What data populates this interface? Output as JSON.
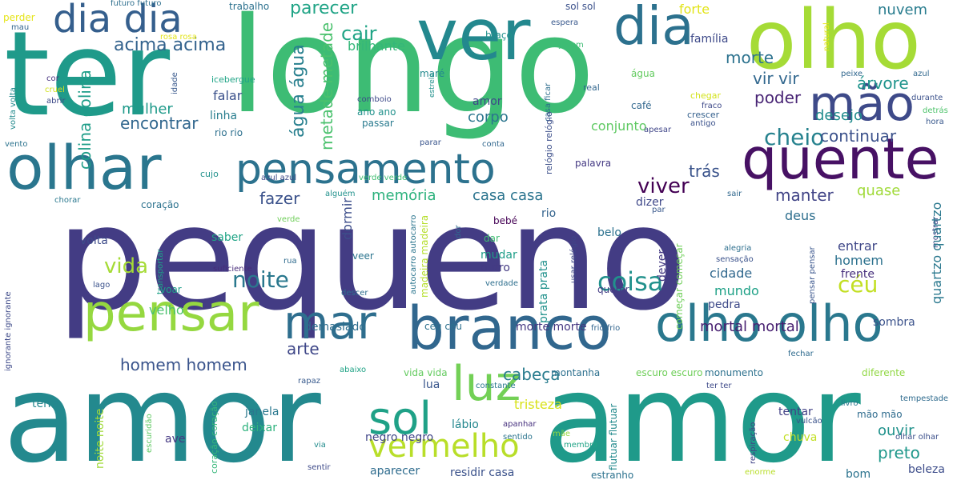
{
  "words": [
    {
      "text": "pequeno",
      "color": "#433c84"
    },
    {
      "text": "longo",
      "color": "#3dbc74"
    },
    {
      "text": "amor",
      "color": "#23898e"
    },
    {
      "text": "ter",
      "color": "#1f9a8a"
    },
    {
      "text": "amor",
      "color": "#1f9a8a"
    },
    {
      "text": "olho",
      "color": "#a5db36"
    },
    {
      "text": "ver",
      "color": "#23888e"
    },
    {
      "text": "quente",
      "color": "#471164"
    },
    {
      "text": "olhar",
      "color": "#2a768e"
    },
    {
      "text": "pensamento",
      "color": "#2c728e"
    },
    {
      "text": "branco",
      "color": "#31678e"
    },
    {
      "text": "olho olho",
      "color": "#2a788e"
    },
    {
      "text": "pensar",
      "color": "#95d840"
    },
    {
      "text": "dia dia",
      "color": "#355f8d"
    },
    {
      "text": "dia",
      "color": "#2c718e"
    },
    {
      "text": "mão",
      "color": "#3e4a89"
    },
    {
      "text": "mar",
      "color": "#2e6e8e"
    },
    {
      "text": "luz",
      "color": "#73d056"
    },
    {
      "text": "sol",
      "color": "#1fa187"
    },
    {
      "text": "vermelho",
      "color": "#b8de29"
    },
    {
      "text": "coisa",
      "color": "#21918c"
    },
    {
      "text": "noite",
      "color": "#2a788e"
    },
    {
      "text": "viver",
      "color": "#440154"
    },
    {
      "text": "vida",
      "color": "#a5db36"
    },
    {
      "text": "céu",
      "color": "#c2df23"
    },
    {
      "text": "cheio",
      "color": "#26828e"
    },
    {
      "text": "encontrar",
      "color": "#31678e"
    },
    {
      "text": "parecer",
      "color": "#20a486"
    },
    {
      "text": "cair",
      "color": "#20a486"
    },
    {
      "text": "acima acima",
      "color": "#33628d"
    },
    {
      "text": "água água",
      "color": "#277f8e"
    },
    {
      "text": "metade metade",
      "color": "#4ac16d"
    },
    {
      "text": "colina colina",
      "color": "#1f9e89"
    },
    {
      "text": "morte",
      "color": "#2c728e"
    },
    {
      "text": "nuvem",
      "color": "#287c8e"
    },
    {
      "text": "vir vir",
      "color": "#31678e"
    },
    {
      "text": "árvore",
      "color": "#1f948c"
    },
    {
      "text": "poder",
      "color": "#482475"
    },
    {
      "text": "desejo",
      "color": "#228c8d"
    },
    {
      "text": "continuar",
      "color": "#3b518b"
    },
    {
      "text": "manter",
      "color": "#414487"
    },
    {
      "text": "quase",
      "color": "#a0da39"
    },
    {
      "text": "fazer",
      "color": "#3b528b"
    },
    {
      "text": "memória",
      "color": "#2db27d"
    },
    {
      "text": "casa casa",
      "color": "#2b748e"
    },
    {
      "text": "trás",
      "color": "#3a538b"
    },
    {
      "text": "homem homem",
      "color": "#3a548c"
    },
    {
      "text": "mortal mortal",
      "color": "#482071"
    },
    {
      "text": "arte",
      "color": "#3f4788"
    },
    {
      "text": "cabeça",
      "color": "#287c8e"
    },
    {
      "text": "tristeza",
      "color": "#d8e219"
    },
    {
      "text": "preto",
      "color": "#1f988b"
    },
    {
      "text": "ouvir",
      "color": "#20928c"
    },
    {
      "text": "mulher",
      "color": "#1f9a8a"
    },
    {
      "text": "falar",
      "color": "#3b518b"
    },
    {
      "text": "corpo",
      "color": "#2b758e"
    },
    {
      "text": "brilhante",
      "color": "#35b779"
    },
    {
      "text": "conjunto",
      "color": "#5ec962"
    },
    {
      "text": "amor",
      "color": "#3f4889"
    },
    {
      "text": "linha",
      "color": "#287d8e"
    },
    {
      "text": "forte",
      "color": "#e2e418"
    },
    {
      "text": "família",
      "color": "#3e4a89"
    },
    {
      "text": "deus",
      "color": "#2e6f8e"
    },
    {
      "text": "mundo",
      "color": "#1fa187"
    },
    {
      "text": "cidade",
      "color": "#31688e"
    },
    {
      "text": "homem",
      "color": "#2c718e"
    },
    {
      "text": "frente",
      "color": "#472f7d"
    },
    {
      "text": "entrar",
      "color": "#3f4788"
    },
    {
      "text": "volta",
      "color": "#3e4c8a"
    },
    {
      "text": "saber",
      "color": "#20a486"
    },
    {
      "text": "velho",
      "color": "#4ac16d"
    },
    {
      "text": "dormir",
      "color": "#3d4e8a"
    },
    {
      "text": "mudar",
      "color": "#1f9e89"
    },
    {
      "text": "outro",
      "color": "#443a83"
    },
    {
      "text": "pedra",
      "color": "#3e4a89"
    },
    {
      "text": "belo",
      "color": "#2c718e"
    },
    {
      "text": "sombra",
      "color": "#3b528b"
    },
    {
      "text": "demasiado",
      "color": "#2e6e8e"
    },
    {
      "text": "céu céu",
      "color": "#2d708e"
    },
    {
      "text": "morte morte",
      "color": "#453781"
    },
    {
      "text": "lua",
      "color": "#39568c"
    },
    {
      "text": "janela",
      "color": "#2a778e"
    },
    {
      "text": "deixar",
      "color": "#2db27d"
    },
    {
      "text": "lábio",
      "color": "#24878e"
    },
    {
      "text": "negro negro",
      "color": "#404688"
    },
    {
      "text": "aparecer",
      "color": "#2f6c8e"
    },
    {
      "text": "residir casa",
      "color": "#3b528b"
    },
    {
      "text": "tentar",
      "color": "#424186"
    },
    {
      "text": "mão mão",
      "color": "#2f6c8e"
    },
    {
      "text": "chuva",
      "color": "#c2df23"
    },
    {
      "text": "beleza",
      "color": "#3d4d8a"
    },
    {
      "text": "bom",
      "color": "#2c738e"
    },
    {
      "text": "ave",
      "color": "#453882"
    },
    {
      "text": "terra",
      "color": "#24878e"
    },
    {
      "text": "rio",
      "color": "#33638d"
    },
    {
      "text": "dizer",
      "color": "#3f4889"
    },
    {
      "text": "bebé",
      "color": "#440154"
    },
    {
      "text": "dar",
      "color": "#40bd72"
    },
    {
      "text": "voar",
      "color": "#1f9e89"
    },
    {
      "text": "coração",
      "color": "#2c728e"
    },
    {
      "text": "café",
      "color": "#31678e"
    },
    {
      "text": "real",
      "color": "#31668e"
    },
    {
      "text": "água",
      "color": "#63cb5f"
    },
    {
      "text": "maré",
      "color": "#23898e"
    },
    {
      "text": "comboio",
      "color": "#3e4a89"
    },
    {
      "text": "passar",
      "color": "#297a8e"
    },
    {
      "text": "ano ano",
      "color": "#21918c"
    },
    {
      "text": "rio rio",
      "color": "#2d708e"
    },
    {
      "text": "trabalho",
      "color": "#2c718e"
    },
    {
      "text": "sol sol",
      "color": "#3b518b"
    },
    {
      "text": "espera",
      "color": "#38588c"
    },
    {
      "text": "jovem",
      "color": "#3dbc74"
    },
    {
      "text": "braço",
      "color": "#21918c"
    },
    {
      "text": "futuro futuro",
      "color": "#2e6f8e"
    },
    {
      "text": "perder",
      "color": "#e5e419"
    },
    {
      "text": "mau",
      "color": "#32658e"
    },
    {
      "text": "rosa rosa",
      "color": "#e2e418"
    },
    {
      "text": "idade",
      "color": "#38588c"
    },
    {
      "text": "icebergue",
      "color": "#20a486"
    },
    {
      "text": "cor",
      "color": "#46317e"
    },
    {
      "text": "cruel",
      "color": "#d0e11c"
    },
    {
      "text": "abrir",
      "color": "#3e4a89"
    },
    {
      "text": "volta volta",
      "color": "#238a8d"
    },
    {
      "text": "vento",
      "color": "#2c738e"
    },
    {
      "text": "estrela",
      "color": "#21918c"
    },
    {
      "text": "casa ficar",
      "color": "#2e6e8e"
    },
    {
      "text": "relógio relógio",
      "color": "#3c4f8a"
    },
    {
      "text": "chegar",
      "color": "#d2e21b"
    },
    {
      "text": "fraco",
      "color": "#3e4989"
    },
    {
      "text": "crescer",
      "color": "#34608d"
    },
    {
      "text": "antigo",
      "color": "#3b528b"
    },
    {
      "text": "natural",
      "color": "#e5e419"
    },
    {
      "text": "peixe",
      "color": "#31678e"
    },
    {
      "text": "azul",
      "color": "#31688e"
    },
    {
      "text": "durante",
      "color": "#3b518b"
    },
    {
      "text": "detrás",
      "color": "#4ec36b"
    },
    {
      "text": "hora",
      "color": "#38588c"
    },
    {
      "text": "parar",
      "color": "#39558c"
    },
    {
      "text": "conta",
      "color": "#31678e"
    },
    {
      "text": "palavra",
      "color": "#443983"
    },
    {
      "text": "apesar",
      "color": "#404688"
    },
    {
      "text": "azul azul",
      "color": "#3e4a89"
    },
    {
      "text": "verde verde",
      "color": "#40bd72"
    },
    {
      "text": "cujo",
      "color": "#21918c"
    },
    {
      "text": "chorar",
      "color": "#2a788e"
    },
    {
      "text": "alguém",
      "color": "#21918c"
    },
    {
      "text": "verde",
      "color": "#6ece58"
    },
    {
      "text": "sair",
      "color": "#31688e"
    },
    {
      "text": "mostrar",
      "color": "#414487"
    },
    {
      "text": "par",
      "color": "#38588c"
    },
    {
      "text": "transportar",
      "color": "#1fa188"
    },
    {
      "text": "rua",
      "color": "#2f6b8e"
    },
    {
      "text": "suficiente",
      "color": "#472c7a"
    },
    {
      "text": "lago",
      "color": "#3b528b"
    },
    {
      "text": "ignorante ignorante",
      "color": "#3e4a89"
    },
    {
      "text": "descer",
      "color": "#2e6e8e"
    },
    {
      "text": "verdade",
      "color": "#2e6f8e"
    },
    {
      "text": "usar relógio",
      "color": "#3f4788"
    },
    {
      "text": "alegria",
      "color": "#2e6f8e"
    },
    {
      "text": "sensação",
      "color": "#3b528b"
    },
    {
      "text": "querer",
      "color": "#433d84"
    },
    {
      "text": "dever",
      "color": "#443a83"
    },
    {
      "text": "começar começar",
      "color": "#6ece58"
    },
    {
      "text": "quartzo quartzo",
      "color": "#2a788e"
    },
    {
      "text": "prata prata",
      "color": "#21918c"
    },
    {
      "text": "autocarro autocarro",
      "color": "#2b758e"
    },
    {
      "text": "madeira madeira",
      "color": "#b5de2b"
    },
    {
      "text": "dor",
      "color": "#31688e"
    },
    {
      "text": "veer",
      "color": "#2b748e"
    },
    {
      "text": "frio frio",
      "color": "#32658e"
    },
    {
      "text": "escuro escuro",
      "color": "#6ece58"
    },
    {
      "text": "monumento",
      "color": "#2d718e"
    },
    {
      "text": "fechar",
      "color": "#2f6b8e"
    },
    {
      "text": "diferente",
      "color": "#90d743"
    },
    {
      "text": "abaixo",
      "color": "#20a386"
    },
    {
      "text": "vida vida",
      "color": "#63cb5f"
    },
    {
      "text": "constante",
      "color": "#2a788e"
    },
    {
      "text": "montanha",
      "color": "#2d708e"
    },
    {
      "text": "rapaz",
      "color": "#37598c"
    },
    {
      "text": "noite noite",
      "color": "#a0da39"
    },
    {
      "text": "coração coração",
      "color": "#35b779"
    },
    {
      "text": "escuridão",
      "color": "#5ec962"
    },
    {
      "text": "via",
      "color": "#228c8d"
    },
    {
      "text": "sentir",
      "color": "#3e4a89"
    },
    {
      "text": "apanhar",
      "color": "#46307e"
    },
    {
      "text": "mãe",
      "color": "#95d840"
    },
    {
      "text": "sentido",
      "color": "#2b748e"
    },
    {
      "text": "membro",
      "color": "#20a386"
    },
    {
      "text": "flutuar flutuar",
      "color": "#238a8d"
    },
    {
      "text": "estranho",
      "color": "#2c728e"
    },
    {
      "text": "respiração",
      "color": "#414487"
    },
    {
      "text": "ter ter",
      "color": "#3e4a89"
    },
    {
      "text": "vulcão",
      "color": "#3b528b"
    },
    {
      "text": "livro",
      "color": "#2a778e"
    },
    {
      "text": "tempestade",
      "color": "#2f6b8e"
    },
    {
      "text": "olhar olhar",
      "color": "#3c508b"
    },
    {
      "text": "pensar pensar",
      "color": "#39558c"
    },
    {
      "text": "enorme",
      "color": "#b8de29"
    }
  ]
}
